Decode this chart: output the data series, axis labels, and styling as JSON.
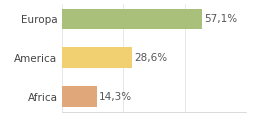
{
  "categories": [
    "Europa",
    "America",
    "Africa"
  ],
  "values": [
    57.1,
    28.6,
    14.3
  ],
  "labels": [
    "57,1%",
    "28,6%",
    "14,3%"
  ],
  "bar_colors": [
    "#a8c07a",
    "#f0d070",
    "#e0a87a"
  ],
  "background_color": "#ffffff",
  "xlim": [
    0,
    75
  ],
  "label_fontsize": 7.5,
  "tick_fontsize": 7.5,
  "bar_height": 0.52
}
